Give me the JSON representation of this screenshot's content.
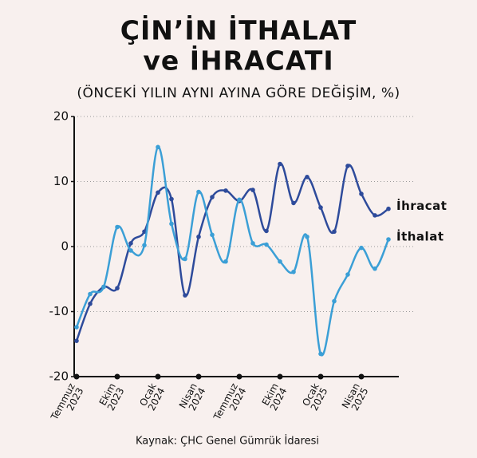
{
  "chart_data": {
    "type": "line",
    "title": [
      "ÇİN’İN İTHALAT",
      "ve İHRACATI"
    ],
    "subtitle": "(ÖNCEKİ YILIN AYNI AYINA GÖRE DEĞİŞİM, %)",
    "source": "Kaynak: ÇHC Genel Gümrük İdaresi",
    "categories": [
      "Temmuz 2023",
      null,
      null,
      "Ekim 2023",
      null,
      null,
      "Ocak 2024",
      null,
      null,
      "Nisan 2024",
      null,
      null,
      "Temmuz 2024",
      null,
      null,
      "Ekim 2024",
      null,
      null,
      "Ocak 2025",
      null,
      null,
      "Nisan 2025",
      null,
      null
    ],
    "series": [
      {
        "name": "İhracat",
        "color": "#2e4b9b",
        "values": [
          -14.5,
          -8.8,
          -6.2,
          -6.4,
          0.5,
          2.3,
          8.3,
          7.3,
          -7.5,
          1.5,
          7.6,
          8.6,
          7.0,
          8.7,
          2.4,
          12.7,
          6.7,
          10.7,
          6.0,
          2.3,
          12.4,
          8.1,
          4.8,
          5.8
        ]
      },
      {
        "name": "İthalat",
        "color": "#3b9fd6",
        "values": [
          -12.4,
          -7.3,
          -6.2,
          3.0,
          -0.6,
          0.2,
          15.3,
          3.5,
          -1.9,
          8.4,
          1.8,
          -2.3,
          7.2,
          0.5,
          0.3,
          -2.3,
          -3.9,
          1.5,
          -16.5,
          -8.4,
          -4.3,
          -0.2,
          -3.4,
          1.1
        ]
      }
    ],
    "ylim": [
      -20,
      20
    ],
    "yticks": [
      -20,
      -10,
      0,
      10,
      20
    ],
    "grid": true
  }
}
